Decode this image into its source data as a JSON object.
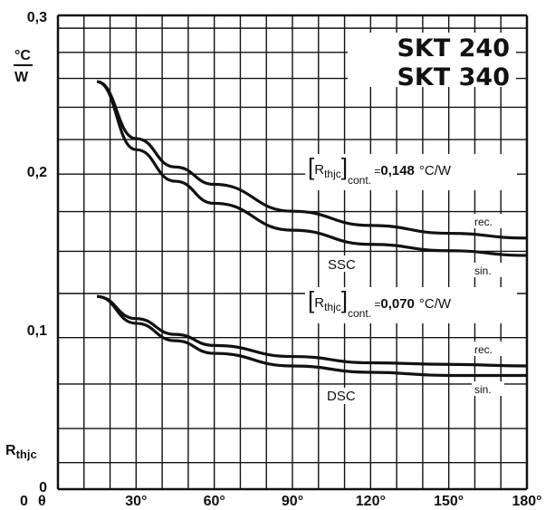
{
  "chart_data": {
    "type": "line",
    "title_lines": [
      "SKT 240",
      "SKT 340"
    ],
    "y_unit_numerator": "°C",
    "y_unit_denominator": "W",
    "ylabel": "Rthjc",
    "xlim": [
      0,
      180
    ],
    "ylim": [
      0,
      0.3
    ],
    "x_ticks": [
      "0",
      "θ",
      "30°",
      "60°",
      "90°",
      "120°",
      "150°",
      "180°"
    ],
    "y_ticks": [
      "0,3",
      "0,2",
      "0,1",
      "0"
    ],
    "grid": true,
    "series": [
      {
        "name": "rec.",
        "group": "SSC",
        "x": [
          15,
          30,
          45,
          60,
          90,
          120,
          150,
          180
        ],
        "y": [
          0.258,
          0.222,
          0.204,
          0.193,
          0.176,
          0.167,
          0.162,
          0.159
        ]
      },
      {
        "name": "sin.",
        "group": "SSC",
        "x": [
          15,
          30,
          45,
          60,
          90,
          120,
          150,
          180
        ],
        "y": [
          0.258,
          0.215,
          0.195,
          0.181,
          0.164,
          0.155,
          0.151,
          0.148
        ]
      },
      {
        "name": "rec.",
        "group": "DSC",
        "x": [
          15,
          30,
          45,
          60,
          90,
          120,
          150,
          180
        ],
        "y": [
          0.122,
          0.108,
          0.098,
          0.091,
          0.084,
          0.08,
          0.079,
          0.078
        ]
      },
      {
        "name": "sin.",
        "group": "DSC",
        "x": [
          15,
          30,
          45,
          60,
          90,
          120,
          150,
          180
        ],
        "y": [
          0.122,
          0.105,
          0.094,
          0.086,
          0.078,
          0.074,
          0.072,
          0.072
        ]
      }
    ],
    "annotations": {
      "ssc_cont_value": "0,148",
      "dsc_cont_value": "0,070",
      "cont_unit": "°C/W",
      "cont_prefix": "=",
      "cont_subscript": "cont.",
      "rthjc_symbol": "Rthjc",
      "ssc_label": "SSC",
      "dsc_label": "DSC",
      "rec_label": "rec.",
      "sin_label": "sin."
    }
  }
}
